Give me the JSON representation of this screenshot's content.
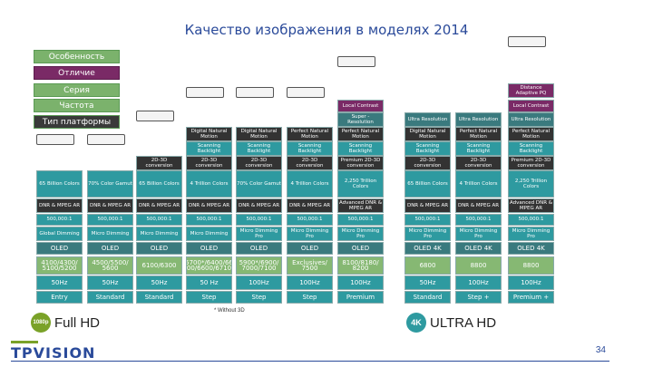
{
  "title": "Качество изображения в моделях 2014",
  "row_labels": [
    "Особенность",
    "Отличие",
    "Серия",
    "Частота",
    "Тип платформы"
  ],
  "columns": [
    {
      "cells": [
        "",
        "",
        "",
        "",
        "",
        "65 Billion Colors",
        "DNR & MPEG AR",
        "500,000:1",
        "Global Dimming",
        "OLED",
        "4100/4300/ 5100/5200",
        "50Hz",
        "Entry"
      ]
    },
    {
      "cells": [
        "",
        "",
        "",
        "",
        "",
        "70% Color Gamut",
        "DNR & MPEG AR",
        "500,000:1",
        "Micro Dimming",
        "OLED",
        "4500/5500/ 5600",
        "50Hz",
        "Standard"
      ]
    },
    {
      "cells": [
        "",
        "",
        "",
        "",
        "2D-3D conversion",
        "65 Billion Colors",
        "DNR & MPEG AR",
        "500,000:1",
        "Micro Dimming",
        "OLED",
        "6100/6300",
        "50Hz",
        "Standard"
      ]
    },
    {
      "cells": [
        "",
        "",
        "Digital Natural Motion",
        "Scanning Backlight",
        "2D-3D conversion",
        "4 Trillion Colors",
        "DNR & MPEG AR",
        "500,000:1",
        "Micro Dimming",
        "OLED",
        "5700*/6400/66 00/6600/6710",
        "50 Hz",
        "Step"
      ]
    },
    {
      "cells": [
        "",
        "",
        "Digital Natural Motion",
        "Scanning Backlight",
        "2D-3D conversion",
        "70% Color Gamut",
        "DNR & MPEG AR",
        "500,000:1",
        "Micro Dimming Pro",
        "OLED",
        "5900*/6900/ 7000/7100",
        "100Hz",
        "Step"
      ]
    },
    {
      "cells": [
        "",
        "",
        "Perfect Natural Motion",
        "Scanning Backlight",
        "2D-3D conversion",
        "4 Trillion Colors",
        "DNR & MPEG AR",
        "500,000:1",
        "Micro Dimming Pro",
        "OLED",
        "Exclusives/ 7500",
        "100Hz",
        "Step"
      ]
    },
    {
      "cells": [
        "Local Contrast",
        "Super - Resolution",
        "Perfect Natural Motion",
        "Scanning Backlight",
        "Premium 2D-3D conversion",
        "2,250 Trillion Colors",
        "Advanced DNR & MPEG AR",
        "500,000:1",
        "Micro Dimming Pro",
        "OLED",
        "8100/8180/ 8200",
        "100Hz",
        "Premium"
      ]
    },
    {
      "cells": [
        "",
        "Ultra Resolution",
        "Digital Natural Motion",
        "Scanning Backlight",
        "2D-3D conversion",
        "65 Billion Colors",
        "DNR & MPEG AR",
        "500,000:1",
        "Micro Dimming Pro",
        "OLED 4K",
        "6800",
        "50Hz",
        "Standard"
      ]
    },
    {
      "cells": [
        "",
        "Ultra Resolution",
        "Perfect Natural Motion",
        "Scanning Backlight",
        "2D-3D conversion",
        "4 Trillion Colors",
        "DNR & MPEG AR",
        "500,000:1",
        "Micro Dimming Pro",
        "OLED 4K",
        "8800",
        "100Hz",
        "Step +"
      ]
    },
    {
      "cells": [
        "Local Contrast",
        "Ultra Resolution",
        "Perfect Natural Motion",
        "Scanning Backlight",
        "Premium 2D-3D conversion",
        "2,250 Trillion Colors",
        "Advanced DNR & MPEG AR",
        "500,000:1",
        "Micro Dimming Pro",
        "OLED 4K",
        "8800",
        "100Hz",
        "Premium +"
      ]
    }
  ],
  "top_right_cells": [
    "Distance Adaptive PQ"
  ],
  "footnote": "* Without 3D",
  "footer": {
    "fullhd_label": "Full HD",
    "fullhd_badge": "1080p",
    "ultrahd_badge": "4K",
    "ultrahd_label": "ULTRA HD"
  },
  "brand": "TPVISION",
  "page_number": "34"
}
